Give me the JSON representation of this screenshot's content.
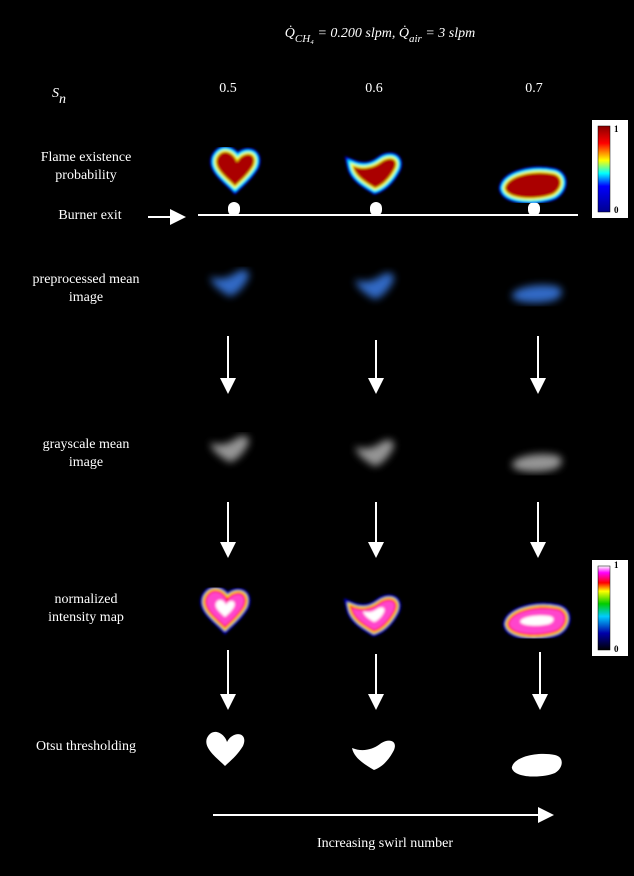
{
  "title": {
    "q1": "Q̇",
    "sub1": "CH₄",
    "mid": " = 0.200 slpm, ",
    "q2": "Q̇",
    "sub2": "air",
    "end": " = 3 slpm"
  },
  "swirl_label": {
    "symbol": "S",
    "sub": "n"
  },
  "columns": [
    "0.5",
    "0.6",
    "0.7"
  ],
  "rows": [
    [
      "Flame existence",
      "probability"
    ],
    [
      "Burner exit"
    ],
    [
      "preprocessed mean",
      "image"
    ],
    [
      "grayscale mean",
      "image"
    ],
    [
      "normalized",
      "intensity map"
    ],
    [
      "Otsu thresholding"
    ]
  ],
  "colorbars": [
    {
      "max": "1",
      "min": "0"
    },
    {
      "max": "1",
      "min": "0"
    }
  ],
  "footer": "Increasing swirl number"
}
